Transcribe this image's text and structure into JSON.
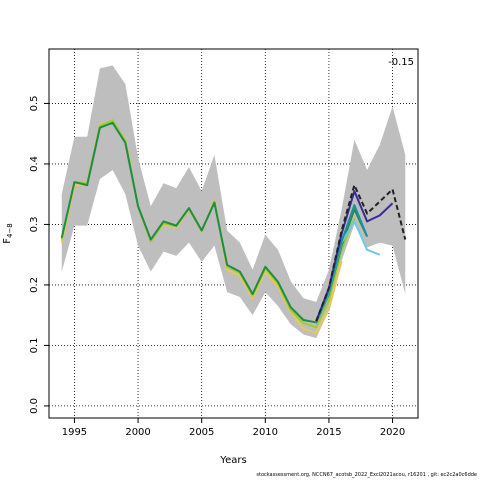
{
  "chart_data": {
    "type": "line",
    "title": "",
    "xlabel": "Years",
    "ylabel": "F",
    "ylabel_sub": "4−8",
    "xlim": [
      1993.0,
      2022.0
    ],
    "ylim": [
      -0.02,
      0.59
    ],
    "x_ticks": [
      1995,
      2000,
      2005,
      2010,
      2015,
      2020
    ],
    "y_ticks": [
      0.0,
      0.1,
      0.2,
      0.3,
      0.4,
      0.5
    ],
    "y_tick_labels": [
      "0.0",
      "0.1",
      "0.2",
      "0.3",
      "0.4",
      "0.5"
    ],
    "grid": true,
    "annotation": "-0.15",
    "band": {
      "color": "#bebebe",
      "x": [
        1994,
        1995,
        1996,
        1997,
        1998,
        1999,
        2000,
        2001,
        2002,
        2003,
        2004,
        2005,
        2006,
        2007,
        2008,
        2009,
        2010,
        2011,
        2012,
        2013,
        2014,
        2015,
        2016,
        2017,
        2018,
        2019,
        2020,
        2021
      ],
      "upper": [
        0.35,
        0.445,
        0.445,
        0.558,
        0.563,
        0.532,
        0.41,
        0.33,
        0.368,
        0.36,
        0.395,
        0.355,
        0.415,
        0.29,
        0.27,
        0.225,
        0.283,
        0.258,
        0.206,
        0.178,
        0.172,
        0.225,
        0.325,
        0.44,
        0.39,
        0.432,
        0.495,
        0.415
      ],
      "lower": [
        0.222,
        0.298,
        0.298,
        0.375,
        0.39,
        0.35,
        0.265,
        0.222,
        0.255,
        0.248,
        0.27,
        0.238,
        0.265,
        0.188,
        0.18,
        0.15,
        0.188,
        0.165,
        0.135,
        0.118,
        0.112,
        0.158,
        0.24,
        0.3,
        0.262,
        0.27,
        0.265,
        0.185
      ]
    },
    "series": [
      {
        "color": "#e6c85a",
        "x": [
          1994,
          1995,
          1996,
          1997,
          1998,
          1999,
          2000,
          2001,
          2002,
          2003,
          2004,
          2005,
          2006,
          2007,
          2008,
          2009,
          2010,
          2011,
          2012,
          2013,
          2014,
          2015,
          2016
        ],
        "values": [
          0.27,
          0.365,
          0.365,
          0.465,
          0.47,
          0.44,
          0.33,
          0.275,
          0.3,
          0.295,
          0.325,
          0.288,
          0.34,
          0.225,
          0.215,
          0.178,
          0.222,
          0.197,
          0.155,
          0.128,
          0.12,
          0.16,
          0.24
        ]
      },
      {
        "color": "#9acd32",
        "x": [
          1994,
          1995,
          1996,
          1997,
          1998,
          1999,
          2000,
          2001,
          2002,
          2003,
          2004,
          2005,
          2006,
          2007,
          2008,
          2009,
          2010,
          2011,
          2012,
          2013,
          2014,
          2015,
          2016,
          2017
        ],
        "values": [
          0.275,
          0.37,
          0.368,
          0.463,
          0.472,
          0.438,
          0.33,
          0.272,
          0.302,
          0.297,
          0.326,
          0.289,
          0.338,
          0.23,
          0.22,
          0.182,
          0.227,
          0.202,
          0.158,
          0.137,
          0.13,
          0.175,
          0.258,
          0.31
        ]
      },
      {
        "color": "#228b44",
        "x": [
          1994,
          1995,
          1996,
          1997,
          1998,
          1999,
          2000,
          2001,
          2002,
          2003,
          2004,
          2005,
          2006,
          2007,
          2008,
          2009,
          2010,
          2011,
          2012,
          2013,
          2014,
          2015,
          2016,
          2017,
          2018
        ],
        "values": [
          0.278,
          0.37,
          0.365,
          0.46,
          0.468,
          0.435,
          0.33,
          0.275,
          0.305,
          0.298,
          0.327,
          0.29,
          0.336,
          0.233,
          0.222,
          0.185,
          0.23,
          0.205,
          0.163,
          0.142,
          0.138,
          0.185,
          0.265,
          0.325,
          0.28
        ]
      },
      {
        "color": "#6ec8e8",
        "x": [
          2014,
          2015,
          2016,
          2017,
          2018,
          2019
        ],
        "values": [
          0.138,
          0.188,
          0.27,
          0.305,
          0.258,
          0.25
        ]
      },
      {
        "color": "#1e90a0",
        "x": [
          2014,
          2015,
          2016,
          2017,
          2018
        ],
        "values": [
          0.138,
          0.19,
          0.272,
          0.332,
          0.28
        ]
      },
      {
        "color": "#3a2a9a",
        "x": [
          2014,
          2015,
          2016,
          2017,
          2018,
          2019,
          2020
        ],
        "values": [
          0.14,
          0.195,
          0.285,
          0.355,
          0.305,
          0.315,
          0.335
        ]
      },
      {
        "color": "#222222",
        "dashed": true,
        "x": [
          2014,
          2015,
          2016,
          2017,
          2018,
          2019,
          2020,
          2021
        ],
        "values": [
          0.14,
          0.195,
          0.29,
          0.365,
          0.318,
          0.338,
          0.358,
          0.275
        ]
      }
    ]
  },
  "footer": "stockassessment.org, NCCN67_acotsb_2022_Excl2021acou, r16201 , git: ec2c2a0c6dde"
}
